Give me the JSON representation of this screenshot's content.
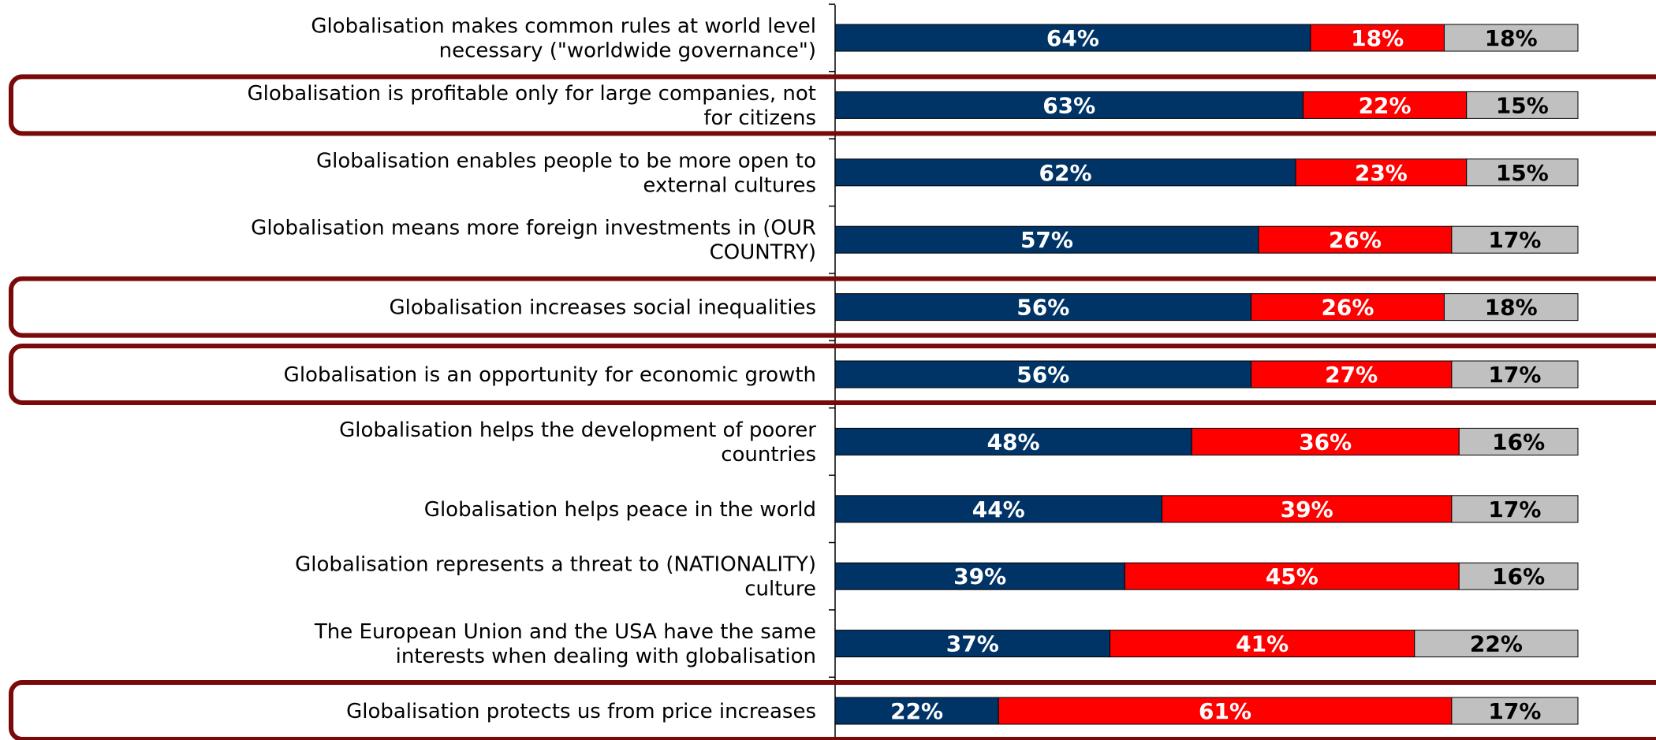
{
  "chart_data": {
    "type": "bar",
    "orientation": "horizontal",
    "stacked": true,
    "categories": [
      "Globalisation makes common rules at world level necessary (\"worldwide governance\")",
      "Globalisation is profitable only for large companies, not for citizens",
      "Globalisation enables people to be more open to external cultures",
      "Globalisation means more foreign investments in (OUR COUNTRY)",
      "Globalisation increases social inequalities",
      "Globalisation is an opportunity for economic growth",
      "Globalisation helps the development of poorer countries",
      "Globalisation helps peace in the world",
      "Globalisation represents a threat to (NATIONALITY) culture",
      "The European Union and the USA have the same interests when dealing with globalisation",
      "Globalisation protects us from price increases"
    ],
    "label_lines": [
      [
        "Globalisation makes common rules at world level",
        "necessary (\"worldwide governance\")"
      ],
      [
        "Globalisation is profitable only for large companies, not",
        "for citizens"
      ],
      [
        "Globalisation enables people to be more open to",
        "external cultures"
      ],
      [
        "Globalisation means more foreign investments in (OUR",
        "COUNTRY)"
      ],
      [
        "Globalisation increases social inequalities"
      ],
      [
        "Globalisation is an opportunity for economic growth"
      ],
      [
        "Globalisation helps the development of poorer",
        "countries"
      ],
      [
        "Globalisation helps peace in the world"
      ],
      [
        "Globalisation represents a threat to (NATIONALITY)",
        "culture"
      ],
      [
        "The European Union and the USA have the same",
        "interests when dealing with globalisation"
      ],
      [
        "Globalisation protects us from price increases"
      ]
    ],
    "series": [
      {
        "values": [
          64,
          63,
          62,
          57,
          56,
          56,
          48,
          44,
          39,
          37,
          22
        ],
        "color": "#003366",
        "label_color": "#ffffff"
      },
      {
        "values": [
          18,
          22,
          23,
          26,
          26,
          27,
          36,
          39,
          45,
          41,
          61
        ],
        "color": "#ff0000",
        "label_color": "#ffffff"
      },
      {
        "values": [
          18,
          15,
          15,
          17,
          18,
          17,
          16,
          17,
          16,
          22,
          17
        ],
        "color": "#c0c0c0",
        "label_color": "#000000"
      }
    ],
    "value_suffix": "%",
    "xlim": [
      0,
      100
    ],
    "highlighted_rows": [
      1,
      4,
      5,
      10
    ],
    "highlight_color": "#7a0a0a"
  }
}
